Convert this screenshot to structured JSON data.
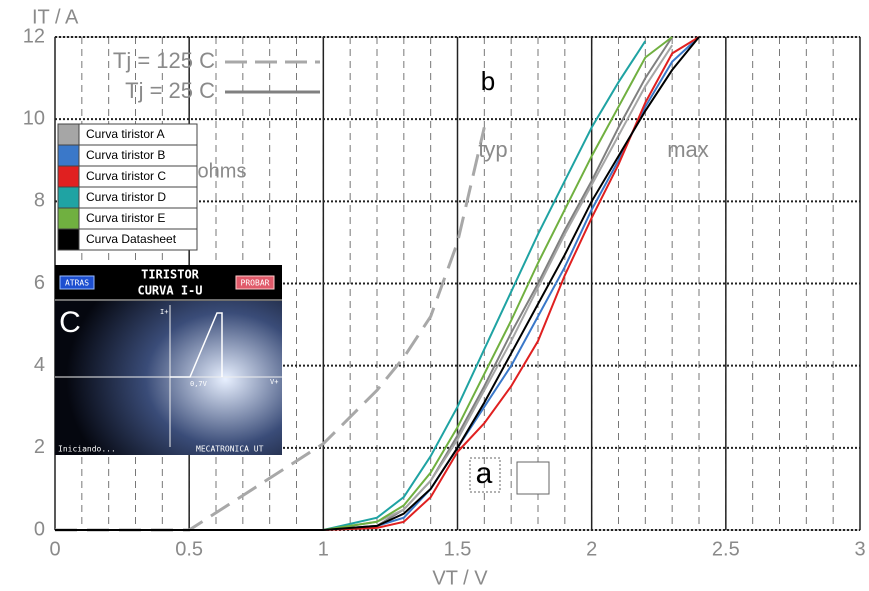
{
  "chart_data": {
    "type": "line",
    "xlabel": "VT / V",
    "ylabel": "IT / A",
    "x": [
      0,
      0.5,
      1,
      1.2,
      1.3,
      1.4,
      1.5,
      1.6,
      1.7,
      1.8,
      1.9,
      2,
      2.1,
      2.2,
      2.3,
      2.4
    ],
    "xlim": [
      0,
      3
    ],
    "xticks": [
      0,
      0.5,
      1,
      1.5,
      2,
      2.5,
      3
    ],
    "ylim": [
      0,
      12
    ],
    "yticks": [
      0,
      2,
      4,
      6,
      8,
      10,
      12
    ],
    "grid": true,
    "series": [
      {
        "name": "Tj = 125 C",
        "color": "#a8a8a8",
        "dashed": true,
        "legend": "lines",
        "values": [
          0,
          0,
          2.1,
          3.4,
          4.2,
          5.2,
          7.0,
          9.8,
          null,
          null,
          null,
          null,
          null,
          null,
          null,
          null
        ]
      },
      {
        "name": "Tj = 25 C",
        "color": "#808080",
        "dashed": false,
        "legend": "lines",
        "values": [
          0,
          0,
          0,
          0.1,
          0.5,
          1.2,
          2.3,
          3.5,
          4.8,
          6.0,
          7.3,
          8.5,
          9.8,
          11.0,
          12.0,
          null
        ]
      },
      {
        "name": "Curva tiristor A",
        "color": "#a6a6a6",
        "dashed": false,
        "legend": "boxes",
        "values": [
          0,
          0,
          0,
          0.2,
          0.5,
          1.2,
          2.2,
          3.4,
          4.6,
          5.9,
          7.2,
          8.4,
          9.6,
          10.8,
          11.8,
          null
        ]
      },
      {
        "name": "Curva tiristor B",
        "color": "#3a78c9",
        "dashed": false,
        "legend": "boxes",
        "values": [
          0,
          0,
          0,
          0.1,
          0.3,
          1.0,
          2.0,
          3.0,
          4.0,
          5.2,
          6.4,
          7.8,
          9.0,
          10.3,
          11.4,
          12.0
        ]
      },
      {
        "name": "Curva tiristor C",
        "color": "#e02020",
        "dashed": false,
        "legend": "boxes",
        "values": [
          0,
          0,
          0,
          0.05,
          0.2,
          0.8,
          1.9,
          2.6,
          3.5,
          4.6,
          6.2,
          7.6,
          8.9,
          10.4,
          11.6,
          12.0
        ]
      },
      {
        "name": "Curva tiristor D",
        "color": "#1fa3a3",
        "dashed": false,
        "legend": "boxes",
        "values": [
          0,
          0,
          0,
          0.3,
          0.8,
          1.8,
          3.0,
          4.4,
          5.8,
          7.2,
          8.5,
          9.8,
          10.9,
          11.9,
          null,
          null
        ]
      },
      {
        "name": "Curva tiristor E",
        "color": "#70b040",
        "dashed": false,
        "legend": "boxes",
        "values": [
          0,
          0,
          0,
          0.2,
          0.6,
          1.4,
          2.5,
          3.8,
          5.1,
          6.5,
          7.8,
          9.1,
          10.3,
          11.5,
          12.0,
          null
        ]
      },
      {
        "name": "Curva Datasheet",
        "color": "#000000",
        "dashed": false,
        "legend": "boxes",
        "values": [
          0,
          0,
          0,
          0.1,
          0.4,
          1.0,
          2.0,
          3.1,
          4.3,
          5.5,
          6.7,
          8.0,
          9.1,
          10.2,
          11.2,
          12.0
        ]
      }
    ],
    "annotations": [
      "b",
      "typ",
      "max",
      "ohms",
      "a"
    ]
  },
  "inset": {
    "label": "C",
    "title": "TIRISTOR",
    "subtitle": "CURVA I-U",
    "back_button": "ATRAS",
    "test_button": "PROBAR",
    "y_axis": "I+",
    "x_axis": "V+",
    "threshold": "0,7V",
    "status": "Iniciando...",
    "footer": "MECATRONICA UT"
  }
}
